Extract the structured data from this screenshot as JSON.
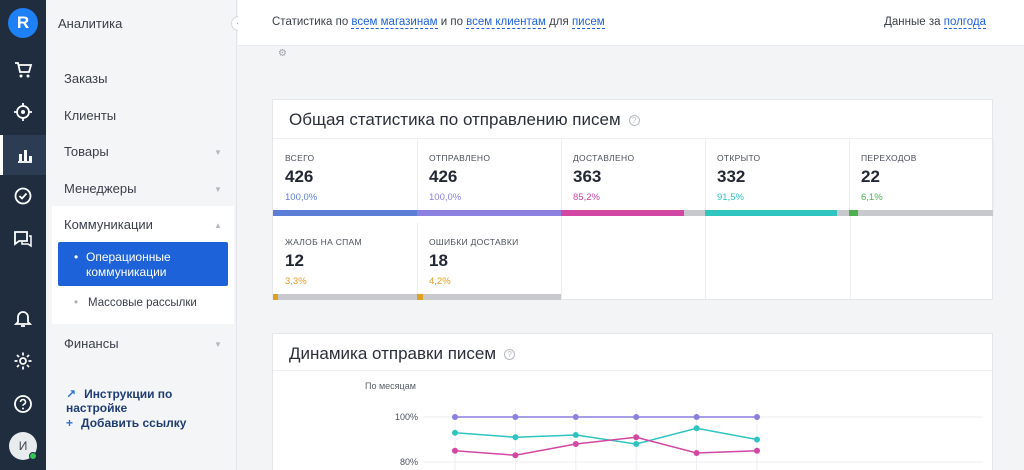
{
  "rail": {
    "logo_letter": "R",
    "icons": [
      "cart-icon",
      "target-icon",
      "bar-chart-icon",
      "check-circle-icon",
      "chat-icon",
      "bell-icon",
      "gear-icon",
      "help-icon"
    ],
    "avatar_letter": "И"
  },
  "sidebar": {
    "section_title": "Аналитика",
    "collapse_glyph": "‹",
    "items": [
      {
        "label": "Заказы"
      },
      {
        "label": "Клиенты"
      },
      {
        "label": "Товары"
      },
      {
        "label": "Менеджеры"
      },
      {
        "label": "Коммуникации"
      },
      {
        "label": "Финансы"
      }
    ],
    "subitems": [
      {
        "label": "Операционные коммуникации",
        "line1": "Операционные",
        "line2": "коммуникации"
      },
      {
        "label": "Массовые рассылки"
      }
    ],
    "links": [
      {
        "label": "Инструкции по настройке",
        "icon": "↗"
      },
      {
        "label": "Добавить ссылку",
        "icon": "+"
      }
    ]
  },
  "topbar": {
    "prefix": "Статистика по",
    "stores": "всем магазинам",
    "and_by": "и по",
    "clients": "всем клиентам",
    "for": "для",
    "letters": "писем",
    "period_prefix": "Данные за",
    "period": "полгода"
  },
  "card1": {
    "title": "Общая статистика по отправлению писем",
    "stats": [
      {
        "label": "ВСЕГО",
        "value": "426",
        "percent": "100,0%",
        "color": "#5b7fd6",
        "fill": 1.0
      },
      {
        "label": "ОТПРАВЛЕНО",
        "value": "426",
        "percent": "100,0%",
        "color": "#8b7fe0",
        "fill": 1.0
      },
      {
        "label": "ДОСТАВЛЕНО",
        "value": "363",
        "percent": "85,2%",
        "color": "#d147a3",
        "fill": 0.852
      },
      {
        "label": "ОТКРЫТО",
        "value": "332",
        "percent": "91,5%",
        "color": "#2fc4c0",
        "fill": 0.915
      },
      {
        "label": "ПЕРЕХОДОВ",
        "value": "22",
        "percent": "6,1%",
        "color": "#4caf50",
        "fill": 0.061
      },
      {
        "label": "ЖАЛОБ НА СПАМ",
        "value": "12",
        "percent": "3,3%",
        "color": "#e0a020",
        "fill": 0.033
      },
      {
        "label": "ОШИБКИ ДОСТАВКИ",
        "value": "18",
        "percent": "4,2%",
        "color": "#e0a020",
        "fill": 0.042
      }
    ]
  },
  "card2": {
    "title": "Динамика отправки писем",
    "subtitle": "По месяцам"
  },
  "chart_data": {
    "type": "line",
    "x": [
      "1",
      "2",
      "3",
      "4",
      "5",
      "6"
    ],
    "y_ticks": [
      "100%",
      "80%"
    ],
    "ylim": [
      78,
      102
    ],
    "series": [
      {
        "color": "#8b7fe0",
        "values": [
          100,
          100,
          100,
          100,
          100,
          100
        ]
      },
      {
        "color": "#2fc4c0",
        "values": [
          93,
          91,
          92,
          88,
          95,
          90
        ]
      },
      {
        "color": "#d147a3",
        "values": [
          85,
          83,
          88,
          91,
          84,
          85
        ]
      }
    ]
  }
}
